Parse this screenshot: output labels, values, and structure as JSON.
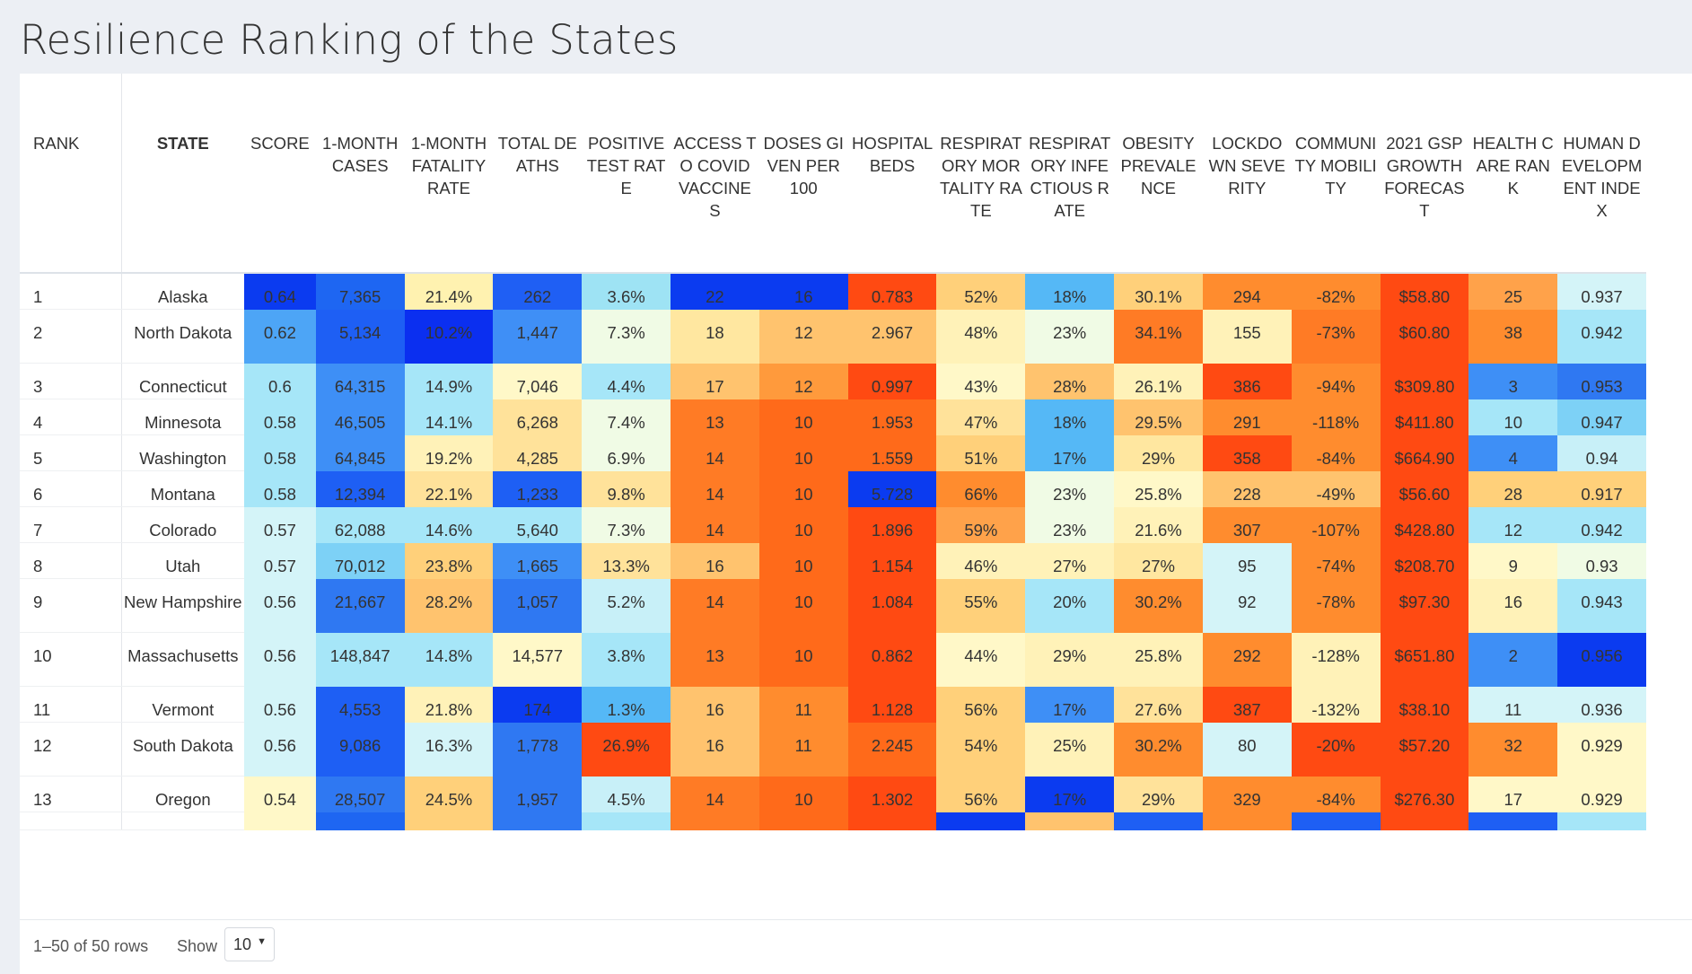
{
  "page": {
    "title": "Resilience Ranking of the States"
  },
  "table": {
    "columns": [
      {
        "key": "rank",
        "label": "RANK"
      },
      {
        "key": "state",
        "label": "STATE"
      },
      {
        "key": "score",
        "label": "SCORE"
      },
      {
        "key": "cases",
        "label": "1-MONTH CASES"
      },
      {
        "key": "fatality",
        "label": "1-MONTH FATALITY RATE"
      },
      {
        "key": "deaths",
        "label": "TOTAL DEATHS"
      },
      {
        "key": "positive",
        "label": "POSITIVE TEST RATE"
      },
      {
        "key": "access",
        "label": "ACCESS TO COVID VACCINES"
      },
      {
        "key": "doses",
        "label": "DOSES GIVEN PER 100"
      },
      {
        "key": "beds",
        "label": "HOSPITAL BEDS"
      },
      {
        "key": "resp_mort",
        "label": "RESPIRATORY MORTALITY RATE"
      },
      {
        "key": "resp_inf",
        "label": "RESPIRATORY INFECTIOUS RATE"
      },
      {
        "key": "obesity",
        "label": "OBESITY PREVALENCE"
      },
      {
        "key": "lockdown",
        "label": "LOCKDOWN SEVERITY"
      },
      {
        "key": "mobility",
        "label": "COMMUNITY MOBILITY"
      },
      {
        "key": "gsp",
        "label": "2021 GSP GROWTH FORECAST"
      },
      {
        "key": "health",
        "label": "HEALTH CARE RANK"
      },
      {
        "key": "hdi",
        "label": "HUMAN DEVELOPMENT INDEX"
      }
    ],
    "rows": [
      {
        "rank": "1",
        "state": "Alaska",
        "score": "0.64",
        "cases": "7,365",
        "fatality": "21.4%",
        "deaths": "262",
        "positive": "3.6%",
        "access": "22",
        "doses": "16",
        "beds": "0.783",
        "resp_mort": "52%",
        "resp_inf": "18%",
        "obesity": "30.1%",
        "lockdown": "294",
        "mobility": "-82%",
        "gsp": "$58.80",
        "health": "25",
        "hdi": "0.937"
      },
      {
        "rank": "2",
        "state": "North Dakota",
        "score": "0.62",
        "cases": "5,134",
        "fatality": "10.2%",
        "deaths": "1,447",
        "positive": "7.3%",
        "access": "18",
        "doses": "12",
        "beds": "2.967",
        "resp_mort": "48%",
        "resp_inf": "23%",
        "obesity": "34.1%",
        "lockdown": "155",
        "mobility": "-73%",
        "gsp": "$60.80",
        "health": "38",
        "hdi": "0.942"
      },
      {
        "rank": "3",
        "state": "Connecticut",
        "score": "0.6",
        "cases": "64,315",
        "fatality": "14.9%",
        "deaths": "7,046",
        "positive": "4.4%",
        "access": "17",
        "doses": "12",
        "beds": "0.997",
        "resp_mort": "43%",
        "resp_inf": "28%",
        "obesity": "26.1%",
        "lockdown": "386",
        "mobility": "-94%",
        "gsp": "$309.80",
        "health": "3",
        "hdi": "0.953"
      },
      {
        "rank": "4",
        "state": "Minnesota",
        "score": "0.58",
        "cases": "46,505",
        "fatality": "14.1%",
        "deaths": "6,268",
        "positive": "7.4%",
        "access": "13",
        "doses": "10",
        "beds": "1.953",
        "resp_mort": "47%",
        "resp_inf": "18%",
        "obesity": "29.5%",
        "lockdown": "291",
        "mobility": "-118%",
        "gsp": "$411.80",
        "health": "10",
        "hdi": "0.947"
      },
      {
        "rank": "5",
        "state": "Washington",
        "score": "0.58",
        "cases": "64,845",
        "fatality": "19.2%",
        "deaths": "4,285",
        "positive": "6.9%",
        "access": "14",
        "doses": "10",
        "beds": "1.559",
        "resp_mort": "51%",
        "resp_inf": "17%",
        "obesity": "29%",
        "lockdown": "358",
        "mobility": "-84%",
        "gsp": "$664.90",
        "health": "4",
        "hdi": "0.94"
      },
      {
        "rank": "6",
        "state": "Montana",
        "score": "0.58",
        "cases": "12,394",
        "fatality": "22.1%",
        "deaths": "1,233",
        "positive": "9.8%",
        "access": "14",
        "doses": "10",
        "beds": "5.728",
        "resp_mort": "66%",
        "resp_inf": "23%",
        "obesity": "25.8%",
        "lockdown": "228",
        "mobility": "-49%",
        "gsp": "$56.60",
        "health": "28",
        "hdi": "0.917"
      },
      {
        "rank": "7",
        "state": "Colorado",
        "score": "0.57",
        "cases": "62,088",
        "fatality": "14.6%",
        "deaths": "5,640",
        "positive": "7.3%",
        "access": "14",
        "doses": "10",
        "beds": "1.896",
        "resp_mort": "59%",
        "resp_inf": "23%",
        "obesity": "21.6%",
        "lockdown": "307",
        "mobility": "-107%",
        "gsp": "$428.80",
        "health": "12",
        "hdi": "0.942"
      },
      {
        "rank": "8",
        "state": "Utah",
        "score": "0.57",
        "cases": "70,012",
        "fatality": "23.8%",
        "deaths": "1,665",
        "positive": "13.3%",
        "access": "16",
        "doses": "10",
        "beds": "1.154",
        "resp_mort": "46%",
        "resp_inf": "27%",
        "obesity": "27%",
        "lockdown": "95",
        "mobility": "-74%",
        "gsp": "$208.70",
        "health": "9",
        "hdi": "0.93"
      },
      {
        "rank": "9",
        "state": "New Hampshire",
        "score": "0.56",
        "cases": "21,667",
        "fatality": "28.2%",
        "deaths": "1,057",
        "positive": "5.2%",
        "access": "14",
        "doses": "10",
        "beds": "1.084",
        "resp_mort": "55%",
        "resp_inf": "20%",
        "obesity": "30.2%",
        "lockdown": "92",
        "mobility": "-78%",
        "gsp": "$97.30",
        "health": "16",
        "hdi": "0.943"
      },
      {
        "rank": "10",
        "state": "Massachusetts",
        "score": "0.56",
        "cases": "148,847",
        "fatality": "14.8%",
        "deaths": "14,577",
        "positive": "3.8%",
        "access": "13",
        "doses": "10",
        "beds": "0.862",
        "resp_mort": "44%",
        "resp_inf": "29%",
        "obesity": "25.8%",
        "lockdown": "292",
        "mobility": "-128%",
        "gsp": "$651.80",
        "health": "2",
        "hdi": "0.956"
      },
      {
        "rank": "11",
        "state": "Vermont",
        "score": "0.56",
        "cases": "4,553",
        "fatality": "21.8%",
        "deaths": "174",
        "positive": "1.3%",
        "access": "16",
        "doses": "11",
        "beds": "1.128",
        "resp_mort": "56%",
        "resp_inf": "17%",
        "obesity": "27.6%",
        "lockdown": "387",
        "mobility": "-132%",
        "gsp": "$38.10",
        "health": "11",
        "hdi": "0.936"
      },
      {
        "rank": "12",
        "state": "South Dakota",
        "score": "0.56",
        "cases": "9,086",
        "fatality": "16.3%",
        "deaths": "1,778",
        "positive": "26.9%",
        "access": "16",
        "doses": "11",
        "beds": "2.245",
        "resp_mort": "54%",
        "resp_inf": "25%",
        "obesity": "30.2%",
        "lockdown": "80",
        "mobility": "-20%",
        "gsp": "$57.20",
        "health": "32",
        "hdi": "0.929"
      },
      {
        "rank": "13",
        "state": "Oregon",
        "score": "0.54",
        "cases": "28,507",
        "fatality": "24.5%",
        "deaths": "1,957",
        "positive": "4.5%",
        "access": "14",
        "doses": "10",
        "beds": "1.302",
        "resp_mort": "56%",
        "resp_inf": "17%",
        "obesity": "29%",
        "lockdown": "329",
        "mobility": "-84%",
        "gsp": "$276.30",
        "health": "17",
        "hdi": "0.929"
      },
      {
        "rank": "",
        "state": "",
        "score": "",
        "cases": "",
        "fatality": "",
        "deaths": "",
        "positive": "",
        "access": "",
        "doses": "",
        "beds": "",
        "resp_mort": "",
        "resp_inf": "",
        "obesity": "",
        "lockdown": "",
        "mobility": "",
        "gsp": "",
        "health": "",
        "hdi": ""
      }
    ],
    "cell_colors": [
      [
        "#0b3bf0",
        "#1e66f2",
        "#fff2b0",
        "#1f5ff4",
        "#9ee3f4",
        "#0b3bf0",
        "#0b3bf0",
        "#ff4a12",
        "#ffd07a",
        "#55b8f6",
        "#ffd07a",
        "#ff8c2e",
        "#ff8c2e",
        "#ff4a12",
        "#ffa24a",
        "#d4f4f8"
      ],
      [
        "#4da5f6",
        "#1e5ff4",
        "#0b2ff0",
        "#3f8ff6",
        "#f0fbe5",
        "#ffe7a0",
        "#ffc36e",
        "#ffc36e",
        "#fff2b8",
        "#f0fbe5",
        "#ff7b25",
        "#fff2b8",
        "#ff7b25",
        "#ff4a12",
        "#ff8c2e",
        "#a6e6f8"
      ],
      [
        "#a6e6f8",
        "#3e8ff6",
        "#a6e6f8",
        "#fff8c8",
        "#a6e6f8",
        "#ffc36e",
        "#ff9a3c",
        "#ff4a12",
        "#fff8c8",
        "#ffc36e",
        "#fff2b8",
        "#ff4a12",
        "#ff8c2e",
        "#ff4a12",
        "#3e8ff6",
        "#2f78f2"
      ],
      [
        "#a6e6f8",
        "#3e8ff6",
        "#a6e6f8",
        "#ffe29a",
        "#f0fbe5",
        "#ff7b25",
        "#ff6a1a",
        "#ff6a1a",
        "#ffe29a",
        "#55b8f6",
        "#ffc36e",
        "#ff8c2e",
        "#ff8c2e",
        "#ff4a12",
        "#a6e6f8",
        "#7dd1f6"
      ],
      [
        "#a6e6f8",
        "#3e8ff6",
        "#fff2b8",
        "#ffe29a",
        "#f0fbe5",
        "#ff7b25",
        "#ff6a1a",
        "#ff6a1a",
        "#ffd07a",
        "#55b8f6",
        "#ffe7a0",
        "#ff4a12",
        "#ff8c2e",
        "#ff4a12",
        "#3e8ff6",
        "#c8f0f8"
      ],
      [
        "#a6e6f8",
        "#1e5ff4",
        "#ffe29a",
        "#1e5ff4",
        "#ffe29a",
        "#ff7b25",
        "#ff6a1a",
        "#0b3bf0",
        "#ff8c2e",
        "#f0fbe5",
        "#fff8c8",
        "#ffc36e",
        "#ffc36e",
        "#ff4a12",
        "#ffd07a",
        "#ffd07a"
      ],
      [
        "#d4f4f8",
        "#a6e6f8",
        "#a6e6f8",
        "#a6e6f8",
        "#f0fbe5",
        "#ff7b25",
        "#ff6a1a",
        "#ff4a12",
        "#ffa24a",
        "#f0fbe5",
        "#fff2b8",
        "#ff8c2e",
        "#ff8c2e",
        "#ff4a12",
        "#a6e6f8",
        "#a6e6f8"
      ],
      [
        "#d4f4f8",
        "#7dd1f6",
        "#ffd07a",
        "#3e8ff6",
        "#ffe29a",
        "#ffc36e",
        "#ff6a1a",
        "#ff4a12",
        "#fff2b8",
        "#fff2b8",
        "#ffe7a0",
        "#d4f4f8",
        "#ff8c2e",
        "#ff4a12",
        "#fff8c8",
        "#f0fbe5"
      ],
      [
        "#d4f4f8",
        "#2f78f2",
        "#ffc36e",
        "#2f78f2",
        "#c8f0f8",
        "#ff7b25",
        "#ff6a1a",
        "#ff4a12",
        "#ffd07a",
        "#a6e6f8",
        "#ff8c2e",
        "#d4f4f8",
        "#ff8c2e",
        "#ff4a12",
        "#fff2b8",
        "#a6e6f8"
      ],
      [
        "#d4f4f8",
        "#a6e6f8",
        "#a6e6f8",
        "#fff8c8",
        "#a6e6f8",
        "#ff7b25",
        "#ff6a1a",
        "#ff4a12",
        "#fff8c8",
        "#fff2b8",
        "#fff2b8",
        "#ff8c2e",
        "#fff2b8",
        "#ff4a12",
        "#3e8ff6",
        "#0b3bf0"
      ],
      [
        "#d4f4f8",
        "#1e5ff4",
        "#fff2b8",
        "#0b3bf0",
        "#55b8f6",
        "#ffc36e",
        "#ff8c2e",
        "#ff4a12",
        "#ffd07a",
        "#3e8ff6",
        "#ffe29a",
        "#ff4a12",
        "#fff2b8",
        "#ff4a12",
        "#d4f4f8",
        "#d4f4f8"
      ],
      [
        "#d4f4f8",
        "#1e5ff4",
        "#d4f4f8",
        "#2f78f2",
        "#ff4a12",
        "#ffc36e",
        "#ff8c2e",
        "#ff6a1a",
        "#ffd07a",
        "#fff2b8",
        "#ff8c2e",
        "#d4f4f8",
        "#ff4a12",
        "#ff4a12",
        "#ff8c2e",
        "#fff8c8"
      ],
      [
        "#fff8c8",
        "#2f78f2",
        "#ffd07a",
        "#2f78f2",
        "#c8f0f8",
        "#ff7b25",
        "#ff6a1a",
        "#ff4a12",
        "#ffd07a",
        "#0b3bf0",
        "#ffe29a",
        "#ff8c2e",
        "#ff8c2e",
        "#ff4a12",
        "#fff8c8",
        "#fff8c8"
      ],
      [
        "#fff8c8",
        "#1e66f2",
        "#ffd07a",
        "#2f78f2",
        "#a6e6f8",
        "#ff7b25",
        "#ff6a1a",
        "#ff4a12",
        "#0b3bf0",
        "#ffc36e",
        "#1e5ff4",
        "#ff8c2e",
        "#1e5ff4",
        "#ff4a12",
        "#1e5ff4",
        "#a6e6f8"
      ]
    ]
  },
  "footer": {
    "row_count": "1–50 of 50 rows",
    "show_label": "Show",
    "page_size": "10"
  }
}
